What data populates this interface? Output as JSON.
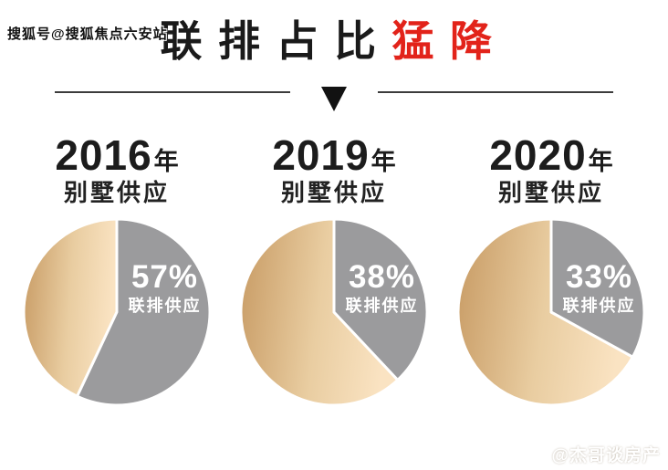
{
  "watermarks": {
    "top_left": "搜狐号@搜狐焦点六安站",
    "bottom_right": "@杰哥谈房产"
  },
  "title": {
    "black_part": "联排占比",
    "red_part": "猛降"
  },
  "colors": {
    "title_black": "#1a1a1a",
    "title_red": "#e2231a",
    "divider_line": "#3c3c3c",
    "pie_gray": "#9b9b9d",
    "gold_dark": "#c79a63",
    "gold_mid": "#e9cda1",
    "gold_light": "#fae3c2",
    "label_white": "#ffffff"
  },
  "chart_data": {
    "type": "pie",
    "note": "gray slice = 联排供应 share, gold gradient slice = remainder of villa supply",
    "charts": [
      {
        "year": "2016",
        "year_suffix": "年",
        "subtitle": "别墅供应",
        "percent_label": "57%",
        "slice_label": "联排供应",
        "slices": [
          {
            "label": "联排供应",
            "value": 57
          },
          {
            "label": "其他",
            "value": 43
          }
        ]
      },
      {
        "year": "2019",
        "year_suffix": "年",
        "subtitle": "别墅供应",
        "percent_label": "38%",
        "slice_label": "联排供应",
        "slices": [
          {
            "label": "联排供应",
            "value": 38
          },
          {
            "label": "其他",
            "value": 62
          }
        ]
      },
      {
        "year": "2020",
        "year_suffix": "年",
        "subtitle": "别墅供应",
        "percent_label": "33%",
        "slice_label": "联排供应",
        "slices": [
          {
            "label": "联排供应",
            "value": 33
          },
          {
            "label": "其他",
            "value": 67
          }
        ]
      }
    ]
  }
}
